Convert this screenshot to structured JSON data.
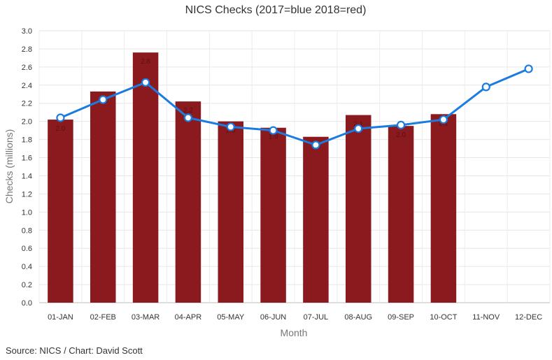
{
  "chart_data": {
    "type": "bar",
    "title": "NICS Checks (2017=blue 2018=red)",
    "xlabel": "Month",
    "ylabel": "Checks (millions)",
    "ylim": [
      0,
      3.0
    ],
    "ytick_step": 0.2,
    "yticks": [
      "0.0",
      "0.2",
      "0.4",
      "0.6",
      "0.8",
      "1.0",
      "1.2",
      "1.4",
      "1.6",
      "1.8",
      "2.0",
      "2.2",
      "2.4",
      "2.6",
      "2.8",
      "3.0"
    ],
    "grid": true,
    "categories": [
      "01-JAN",
      "02-FEB",
      "03-MAR",
      "04-APR",
      "05-MAY",
      "06-JUN",
      "07-JUL",
      "08-AUG",
      "09-SEP",
      "10-OCT",
      "11-NOV",
      "12-DEC"
    ],
    "series": [
      {
        "type": "bar",
        "color": "#8b1a1e",
        "values": [
          2.02,
          2.33,
          2.76,
          2.22,
          2.0,
          1.93,
          1.83,
          2.07,
          1.95,
          2.08,
          null,
          null
        ],
        "data_labels": [
          "2.0",
          "2.3",
          "2.8",
          "2.2",
          "2.0",
          "1.9",
          "1.8",
          "2.1",
          "2.0",
          "2.1",
          "",
          ""
        ]
      },
      {
        "type": "line",
        "color": "#1a7be0",
        "values": [
          2.04,
          2.24,
          2.43,
          2.04,
          1.94,
          1.9,
          1.74,
          1.92,
          1.96,
          2.02,
          2.38,
          2.58
        ]
      }
    ]
  },
  "footer": {
    "source": "Source: NICS / Chart: David Scott"
  }
}
